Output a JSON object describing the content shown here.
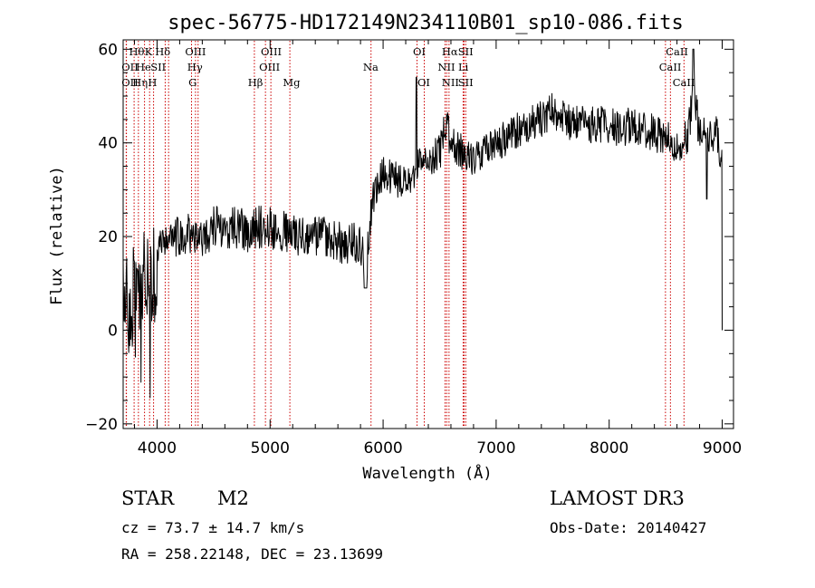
{
  "chart_data": {
    "type": "line",
    "title": "spec-56775-HD172149N234110B01_sp10-086.fits",
    "xlabel": "Wavelength (Å)",
    "ylabel": "Flux (relative)",
    "xlim": [
      3700,
      9100
    ],
    "ylim": [
      -21,
      62
    ],
    "xticks": [
      4000,
      5000,
      6000,
      7000,
      8000,
      9000
    ],
    "yticks": [
      -20,
      0,
      20,
      40,
      60
    ],
    "tick_labels_x": [
      "4000",
      "5000",
      "6000",
      "7000",
      "8000",
      "9000"
    ],
    "tick_labels_y": [
      "−20",
      "0",
      "20",
      "40",
      "60"
    ],
    "spectrum_anchors": [
      [
        3700,
        12
      ],
      [
        3760,
        5
      ],
      [
        3800,
        8
      ],
      [
        3850,
        10
      ],
      [
        3900,
        12
      ],
      [
        3950,
        8
      ],
      [
        4000,
        16
      ],
      [
        4100,
        19
      ],
      [
        4200,
        20
      ],
      [
        4300,
        21
      ],
      [
        4400,
        20
      ],
      [
        4500,
        22
      ],
      [
        4600,
        22
      ],
      [
        4700,
        22
      ],
      [
        4800,
        21
      ],
      [
        4900,
        22
      ],
      [
        5000,
        22
      ],
      [
        5100,
        21
      ],
      [
        5200,
        21
      ],
      [
        5300,
        20
      ],
      [
        5400,
        20
      ],
      [
        5500,
        20
      ],
      [
        5600,
        19
      ],
      [
        5700,
        18
      ],
      [
        5780,
        19
      ],
      [
        5850,
        13
      ],
      [
        5900,
        27
      ],
      [
        5950,
        31
      ],
      [
        6000,
        33
      ],
      [
        6100,
        32
      ],
      [
        6200,
        32
      ],
      [
        6300,
        35
      ],
      [
        6400,
        37
      ],
      [
        6500,
        38
      ],
      [
        6560,
        44
      ],
      [
        6600,
        40
      ],
      [
        6650,
        39
      ],
      [
        6700,
        38
      ],
      [
        6750,
        37
      ],
      [
        6800,
        36
      ],
      [
        6900,
        38
      ],
      [
        7000,
        40
      ],
      [
        7100,
        41
      ],
      [
        7200,
        43
      ],
      [
        7300,
        44
      ],
      [
        7400,
        45
      ],
      [
        7500,
        47
      ],
      [
        7600,
        45
      ],
      [
        7700,
        44
      ],
      [
        7800,
        44
      ],
      [
        7900,
        44
      ],
      [
        8000,
        44
      ],
      [
        8100,
        43
      ],
      [
        8200,
        44
      ],
      [
        8300,
        43
      ],
      [
        8400,
        42
      ],
      [
        8500,
        41
      ],
      [
        8550,
        40
      ],
      [
        8600,
        38
      ],
      [
        8700,
        42
      ],
      [
        8750,
        52
      ],
      [
        8800,
        41
      ],
      [
        8850,
        43
      ],
      [
        8900,
        41
      ],
      [
        8950,
        42
      ],
      [
        9000,
        36
      ]
    ],
    "spectral_lines": [
      {
        "name": "Hθ",
        "wavelength": 3797,
        "row": 0,
        "label_x": 3820
      },
      {
        "name": "K",
        "wavelength": 3934,
        "row": 0,
        "label_x": 3925
      },
      {
        "name": "Hδ",
        "wavelength": 4102,
        "row": 0,
        "label_x": 4050
      },
      {
        "name": "OII",
        "wavelength": 3727,
        "row": 1,
        "label_x": 3760
      },
      {
        "name": "He",
        "wavelength": 3889,
        "row": 1,
        "label_x": 3880
      },
      {
        "name": "SII",
        "wavelength": 4072,
        "row": 1,
        "label_x": 4010
      },
      {
        "name": "OII",
        "wavelength": 3729,
        "row": 2,
        "label_x": 3760
      },
      {
        "name": "Hη",
        "wavelength": 3835,
        "row": 2,
        "label_x": 3850
      },
      {
        "name": "H",
        "wavelength": 3969,
        "row": 2,
        "label_x": 3960
      },
      {
        "name": "OIII",
        "wavelength": 4363,
        "row": 0,
        "label_x": 4340
      },
      {
        "name": "Hγ",
        "wavelength": 4340,
        "row": 1,
        "label_x": 4335
      },
      {
        "name": "G",
        "wavelength": 4305,
        "row": 2,
        "label_x": 4315
      },
      {
        "name": "OIII",
        "wavelength": 4959,
        "row": 0,
        "label_x": 5010
      },
      {
        "name": "OIII",
        "wavelength": 5007,
        "row": 1,
        "label_x": 4995
      },
      {
        "name": "Hβ",
        "wavelength": 4861,
        "row": 2,
        "label_x": 4870
      },
      {
        "name": "Mg",
        "wavelength": 5175,
        "row": 2,
        "label_x": 5190
      },
      {
        "name": "Na",
        "wavelength": 5893,
        "row": 1,
        "label_x": 5890
      },
      {
        "name": "OI",
        "wavelength": 6300,
        "row": 0,
        "label_x": 6320
      },
      {
        "name": "OI",
        "wavelength": 6364,
        "row": 2,
        "label_x": 6360
      },
      {
        "name": "Hα",
        "wavelength": 6563,
        "row": 0,
        "label_x": 6590
      },
      {
        "name": "SII",
        "wavelength": 6716,
        "row": 0,
        "label_x": 6730
      },
      {
        "name": "NII",
        "wavelength": 6548,
        "row": 1,
        "label_x": 6560
      },
      {
        "name": "Li",
        "wavelength": 6708,
        "row": 1,
        "label_x": 6710
      },
      {
        "name": "NII",
        "wavelength": 6583,
        "row": 2,
        "label_x": 6595
      },
      {
        "name": "SII",
        "wavelength": 6731,
        "row": 2,
        "label_x": 6730
      },
      {
        "name": "CaII",
        "wavelength": 8542,
        "row": 0,
        "label_x": 8600
      },
      {
        "name": "CaII",
        "wavelength": 8498,
        "row": 1,
        "label_x": 8540
      },
      {
        "name": "CaII",
        "wavelength": 8662,
        "row": 2,
        "label_x": 8660
      }
    ]
  },
  "info": {
    "class_label": "STAR",
    "subclass": "M2",
    "survey": "LAMOST DR3",
    "cz": "cz = 73.7 ± 14.7 km/s",
    "obs_date": "Obs-Date: 20140427",
    "coords": "RA = 258.22148, DEC =  23.13699"
  },
  "colors": {
    "spectrum": "#000000",
    "line_markers": "#cc0000",
    "axes": "#000000",
    "background": "#ffffff"
  }
}
